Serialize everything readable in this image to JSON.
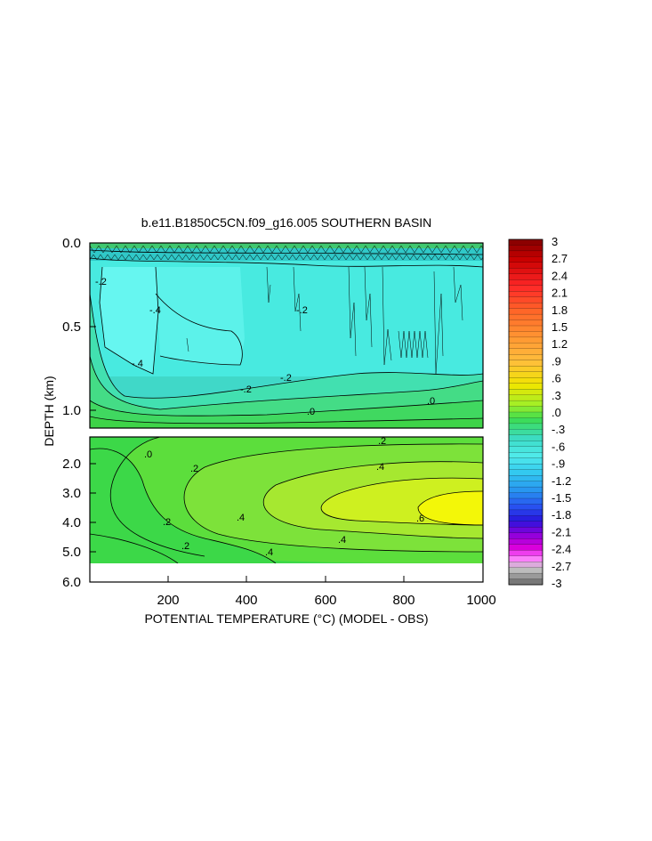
{
  "chart_data": {
    "type": "heatmap",
    "title": "b.e11.B1850C5CN.f09_g16.005 SOUTHERN BASIN",
    "xlabel": "POTENTIAL TEMPERATURE (°C) (MODEL - OBS)",
    "ylabel": "DEPTH (km)",
    "x_ticks": [
      "200",
      "400",
      "600",
      "800",
      "1000"
    ],
    "upper_panel": {
      "y_range_km": [
        0.0,
        1.1
      ],
      "y_ticks": [
        "0.0",
        "0.5",
        "1.0"
      ],
      "contour_labels": [
        "-.4",
        "-.2",
        "-.4",
        "-.2",
        "-.2",
        "-.2",
        ".0",
        ".0"
      ]
    },
    "lower_panel": {
      "y_range_km": [
        1.1,
        6.0
      ],
      "y_ticks": [
        "2.0",
        "3.0",
        "4.0",
        "5.0",
        "6.0"
      ],
      "contour_labels": [
        ".0",
        ".2",
        ".2",
        ".4",
        ".2",
        ".4",
        ".6",
        ".4",
        ".4",
        ".2",
        ".0"
      ]
    },
    "colorbar": {
      "labels": [
        "3",
        "2.7",
        "2.4",
        "2.1",
        "1.8",
        "1.5",
        "1.2",
        ".9",
        ".6",
        ".3",
        ".0",
        "-.3",
        "-.6",
        "-.9",
        "-1.2",
        "-1.5",
        "-1.8",
        "-2.1",
        "-2.4",
        "-2.7",
        "-3"
      ],
      "range": [
        -3,
        3
      ]
    }
  }
}
